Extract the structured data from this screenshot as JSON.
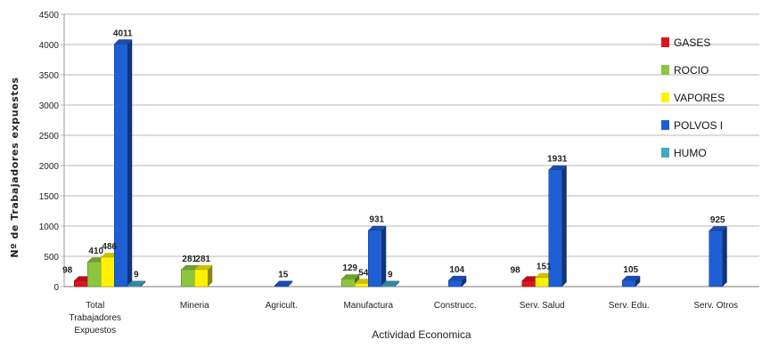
{
  "chart_data": {
    "type": "bar",
    "xlabel": "Actividad Economica",
    "ylabel": "Nº de Trabajadores expuestos",
    "ylim": [
      0,
      4500
    ],
    "yticks": [
      "0",
      "500",
      "1000",
      "1500",
      "2000",
      "2500",
      "3000",
      "3500",
      "4000",
      "4500"
    ],
    "grid": "horizontal",
    "legend_position": "right",
    "categories": [
      [
        "Total",
        "Trabajadores",
        "Expuestos"
      ],
      [
        "Mineria"
      ],
      [
        "Agricult."
      ],
      [
        "Manufactura"
      ],
      [
        "Construcc."
      ],
      [
        "Serv. Salud"
      ],
      [
        "Serv. Edu."
      ],
      [
        "Serv. Otros"
      ]
    ],
    "series": [
      {
        "name": "GASES",
        "color": "#e0141b",
        "values": [
          98,
          null,
          null,
          null,
          null,
          98,
          null,
          null
        ]
      },
      {
        "name": "ROCIO",
        "color": "#8cc63f",
        "values": [
          410,
          281,
          null,
          129,
          null,
          null,
          null,
          null
        ]
      },
      {
        "name": "VAPORES",
        "color": "#fff200",
        "values": [
          486,
          281,
          null,
          54,
          null,
          151,
          null,
          null
        ]
      },
      {
        "name": "POLVOS I",
        "color": "#1f5fd6",
        "values": [
          4011,
          null,
          15,
          931,
          104,
          1931,
          105,
          925
        ]
      },
      {
        "name": "HUMO",
        "color": "#45a8c2",
        "values": [
          9,
          null,
          null,
          9,
          null,
          null,
          null,
          null
        ]
      }
    ]
  }
}
